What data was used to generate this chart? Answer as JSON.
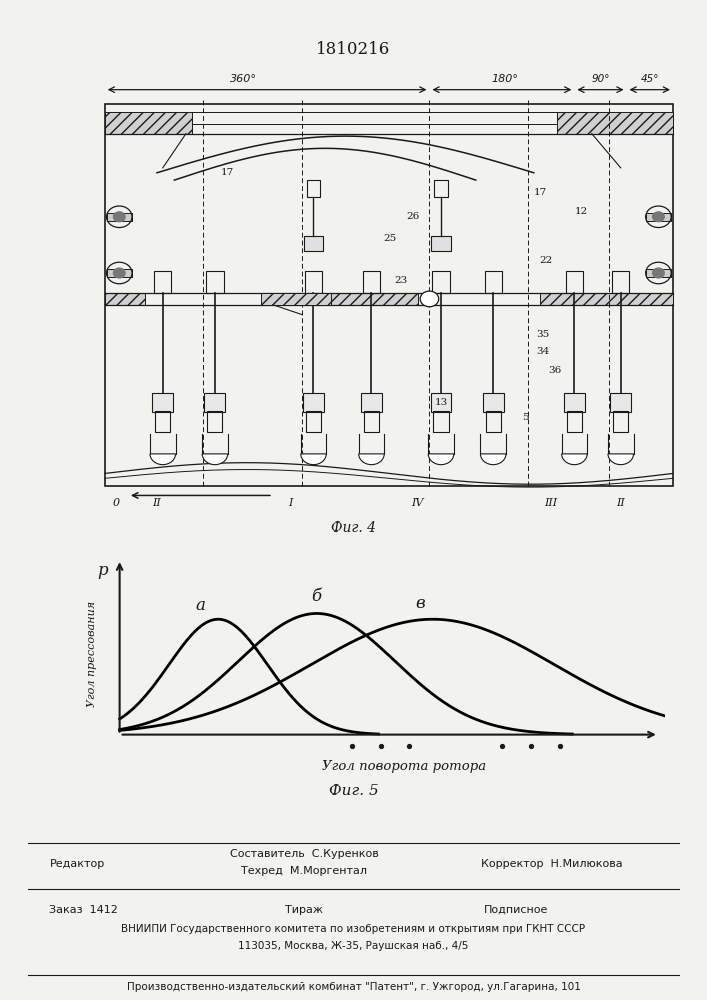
{
  "title_patent": "1810216",
  "fig4_label": "Фиг. 4",
  "fig5_label": "Фиг. 5",
  "bg_color": "#f2f2ee",
  "angle_labels": [
    "360°",
    "180°",
    "90°",
    "45°"
  ],
  "zone_labels": [
    "0",
    "II",
    "I",
    "IV",
    "III",
    "II"
  ],
  "curve_labels": [
    "а",
    "б",
    "в"
  ],
  "ylabel_graph": "Угол прессования",
  "xlabel_graph": "Угол поворота ротора",
  "p_label": "р",
  "footer_line1_left": "Редактор",
  "footer_line1_center1": "Составитель  С.Куренков",
  "footer_line1_center2": "Техред  М.Моргентал",
  "footer_line1_right": "Корректор  Н.Милюкова",
  "footer_line2_col1": "Заказ  1412",
  "footer_line2_col2": "Тираж",
  "footer_line2_col3": "Подписное",
  "footer_line3": "ВНИИПИ Государственного комитета по изобретениям и открытиям при ГКНТ СССР",
  "footer_line4": "113035, Москва, Ж-35, Раушская наб., 4/5",
  "footer_line5": "Производственно-издательский комбинат \"Патент\", г. Ужгород, ул.Гагарина, 101",
  "line_color": "#1a1a1a"
}
